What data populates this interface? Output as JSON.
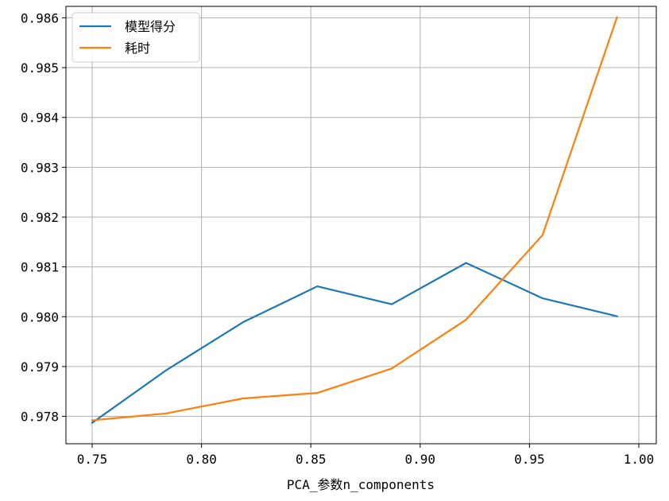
{
  "chart_data": {
    "type": "line",
    "title": "",
    "xlabel": "PCA_参数n_components",
    "ylabel": "",
    "xlim": [
      0.738,
      1.008
    ],
    "ylim": [
      0.97745,
      0.98623
    ],
    "xticks": [
      0.75,
      0.8,
      0.85,
      0.9,
      0.95,
      1.0
    ],
    "xtick_labels": [
      "0.75",
      "0.80",
      "0.85",
      "0.90",
      "0.95",
      "1.00"
    ],
    "yticks": [
      0.978,
      0.979,
      0.98,
      0.981,
      0.982,
      0.983,
      0.984,
      0.985,
      0.986
    ],
    "ytick_labels": [
      "0.978",
      "0.979",
      "0.980",
      "0.981",
      "0.982",
      "0.983",
      "0.984",
      "0.985",
      "0.986"
    ],
    "grid": true,
    "legend_position": "top-left",
    "series": [
      {
        "name": "模型得分",
        "color": "#1f77b4",
        "x": [
          0.75,
          0.784,
          0.819,
          0.853,
          0.887,
          0.921,
          0.956,
          0.99
        ],
        "y": [
          0.97787,
          0.97893,
          0.97989,
          0.98061,
          0.98025,
          0.98108,
          0.98037,
          0.98001
        ]
      },
      {
        "name": "耗时",
        "color": "#ff7f0e",
        "x": [
          0.75,
          0.784,
          0.819,
          0.853,
          0.887,
          0.921,
          0.956,
          0.99
        ],
        "y": [
          0.97792,
          0.97806,
          0.97836,
          0.97847,
          0.97896,
          0.97994,
          0.98164,
          0.98601
        ]
      }
    ]
  }
}
